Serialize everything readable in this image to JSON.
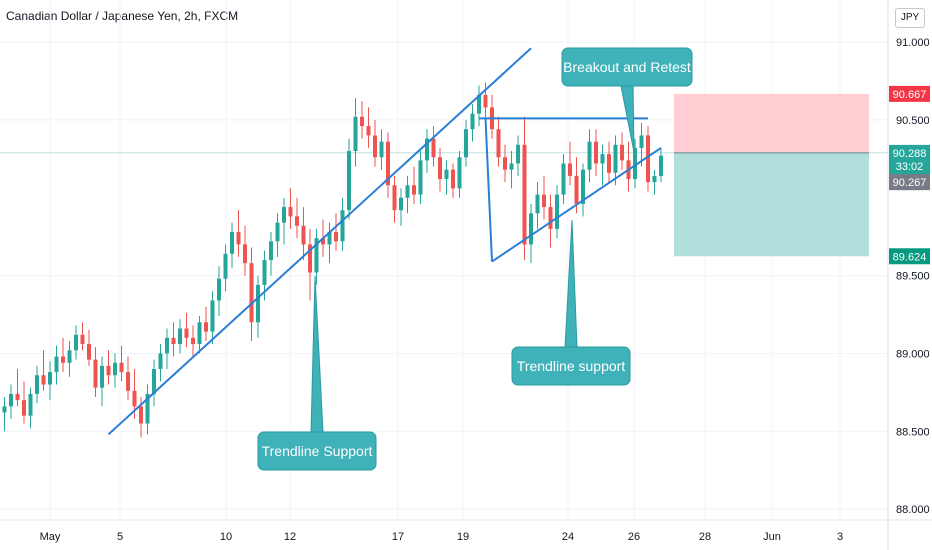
{
  "header": {
    "title": "Canadian Dollar / Japanese Yen, 2h, FXCM"
  },
  "currency_button": "JPY",
  "colors": {
    "up": "#26a69a",
    "down": "#ef5350",
    "line": "#2a7fd4",
    "callout": "#3eb1b9",
    "profit": "#b2dfdb",
    "loss": "#ffcdd2",
    "stop_tag": "#f23645",
    "target_tag": "#089981",
    "price_tag": "#26a69a",
    "gray_tag": "#787b86"
  },
  "chart_data": {
    "type": "candlestick",
    "ylim": [
      87.93,
      91.27
    ],
    "y_ticks": [
      "91.000",
      "90.500",
      "89.500",
      "89.000",
      "88.500",
      "88.000"
    ],
    "x_ticks": [
      "May",
      "5",
      "10",
      "12",
      "17",
      "19",
      "24",
      "26",
      "28",
      "Jun",
      "3"
    ],
    "ohlc": [
      [
        1,
        88.62,
        88.72,
        88.5,
        88.66
      ],
      [
        2,
        88.66,
        88.8,
        88.58,
        88.74
      ],
      [
        3,
        88.74,
        88.9,
        88.66,
        88.7
      ],
      [
        4,
        88.7,
        88.82,
        88.55,
        88.6
      ],
      [
        5,
        88.6,
        88.78,
        88.52,
        88.74
      ],
      [
        6,
        88.74,
        88.92,
        88.68,
        88.86
      ],
      [
        7,
        88.86,
        89.02,
        88.76,
        88.8
      ],
      [
        8,
        88.8,
        88.95,
        88.7,
        88.88
      ],
      [
        9,
        88.88,
        89.05,
        88.8,
        88.98
      ],
      [
        10,
        88.98,
        89.1,
        88.88,
        88.94
      ],
      [
        11,
        88.94,
        89.08,
        88.85,
        89.02
      ],
      [
        12,
        89.02,
        89.18,
        88.96,
        89.12
      ],
      [
        13,
        89.12,
        89.2,
        89.02,
        89.06
      ],
      [
        14,
        89.06,
        89.15,
        88.92,
        88.96
      ],
      [
        15,
        88.96,
        89.04,
        88.72,
        88.78
      ],
      [
        16,
        88.78,
        88.98,
        88.66,
        88.92
      ],
      [
        17,
        88.92,
        89.02,
        88.8,
        88.86
      ],
      [
        18,
        88.86,
        89.0,
        88.78,
        88.94
      ],
      [
        19,
        88.94,
        89.05,
        88.82,
        88.88
      ],
      [
        20,
        88.88,
        88.98,
        88.7,
        88.76
      ],
      [
        21,
        88.76,
        88.9,
        88.58,
        88.66
      ],
      [
        22,
        88.66,
        88.72,
        88.46,
        88.55
      ],
      [
        23,
        88.55,
        88.8,
        88.48,
        88.74
      ],
      [
        24,
        88.74,
        88.96,
        88.66,
        88.9
      ],
      [
        25,
        88.9,
        89.06,
        88.82,
        89.0
      ],
      [
        26,
        89.0,
        89.16,
        88.9,
        89.1
      ],
      [
        27,
        89.1,
        89.2,
        88.98,
        89.06
      ],
      [
        28,
        89.06,
        89.22,
        89.0,
        89.16
      ],
      [
        29,
        89.16,
        89.26,
        89.04,
        89.1
      ],
      [
        30,
        89.1,
        89.18,
        88.98,
        89.06
      ],
      [
        31,
        89.06,
        89.24,
        89.0,
        89.2
      ],
      [
        32,
        89.2,
        89.3,
        89.08,
        89.14
      ],
      [
        33,
        89.14,
        89.4,
        89.06,
        89.34
      ],
      [
        34,
        89.34,
        89.56,
        89.24,
        89.48
      ],
      [
        35,
        89.48,
        89.7,
        89.4,
        89.64
      ],
      [
        36,
        89.64,
        89.84,
        89.55,
        89.78
      ],
      [
        37,
        89.78,
        89.92,
        89.62,
        89.7
      ],
      [
        38,
        89.7,
        89.82,
        89.5,
        89.58
      ],
      [
        39,
        89.58,
        89.68,
        89.08,
        89.2
      ],
      [
        40,
        89.2,
        89.5,
        89.1,
        89.44
      ],
      [
        41,
        89.44,
        89.66,
        89.34,
        89.6
      ],
      [
        42,
        89.6,
        89.78,
        89.5,
        89.72
      ],
      [
        43,
        89.72,
        89.9,
        89.62,
        89.84
      ],
      [
        44,
        89.84,
        90.0,
        89.7,
        89.94
      ],
      [
        45,
        89.94,
        90.06,
        89.8,
        89.88
      ],
      [
        46,
        89.88,
        90.0,
        89.74,
        89.82
      ],
      [
        47,
        89.82,
        89.94,
        89.6,
        89.7
      ],
      [
        48,
        89.7,
        89.8,
        89.34,
        89.52
      ],
      [
        49,
        89.52,
        89.8,
        89.44,
        89.74
      ],
      [
        50,
        89.74,
        89.86,
        89.62,
        89.7
      ],
      [
        51,
        89.7,
        89.84,
        89.58,
        89.78
      ],
      [
        52,
        89.78,
        89.9,
        89.66,
        89.72
      ],
      [
        53,
        89.72,
        90.0,
        89.66,
        89.92
      ],
      [
        54,
        89.92,
        90.38,
        89.86,
        90.3
      ],
      [
        55,
        90.3,
        90.64,
        90.2,
        90.52
      ],
      [
        56,
        90.52,
        90.62,
        90.38,
        90.46
      ],
      [
        57,
        90.46,
        90.58,
        90.32,
        90.4
      ],
      [
        58,
        90.4,
        90.5,
        90.2,
        90.26
      ],
      [
        59,
        90.26,
        90.44,
        90.18,
        90.36
      ],
      [
        60,
        90.36,
        90.42,
        90.0,
        90.08
      ],
      [
        61,
        90.08,
        90.14,
        89.84,
        89.92
      ],
      [
        62,
        89.92,
        90.06,
        89.82,
        90.0
      ],
      [
        63,
        90.0,
        90.14,
        89.9,
        90.08
      ],
      [
        64,
        90.08,
        90.2,
        89.96,
        90.02
      ],
      [
        65,
        90.02,
        90.3,
        89.96,
        90.24
      ],
      [
        66,
        90.24,
        90.44,
        90.16,
        90.38
      ],
      [
        67,
        90.38,
        90.46,
        90.2,
        90.26
      ],
      [
        68,
        90.26,
        90.32,
        90.04,
        90.12
      ],
      [
        69,
        90.12,
        90.24,
        90.02,
        90.18
      ],
      [
        70,
        90.18,
        90.22,
        90.0,
        90.06
      ],
      [
        71,
        90.06,
        90.3,
        90.0,
        90.26
      ],
      [
        72,
        90.26,
        90.5,
        90.2,
        90.44
      ],
      [
        73,
        90.44,
        90.6,
        90.36,
        90.54
      ],
      [
        74,
        90.54,
        90.72,
        90.46,
        90.66
      ],
      [
        75,
        90.66,
        90.74,
        90.5,
        90.58
      ],
      [
        76,
        90.58,
        90.66,
        90.38,
        90.44
      ],
      [
        77,
        90.44,
        90.52,
        90.2,
        90.26
      ],
      [
        78,
        90.26,
        90.34,
        90.1,
        90.18
      ],
      [
        79,
        90.18,
        90.3,
        90.06,
        90.22
      ],
      [
        80,
        90.22,
        90.4,
        90.14,
        90.34
      ],
      [
        81,
        90.34,
        90.52,
        89.6,
        89.7
      ],
      [
        82,
        89.7,
        89.96,
        89.58,
        89.9
      ],
      [
        83,
        89.9,
        90.1,
        89.8,
        90.02
      ],
      [
        84,
        90.02,
        90.14,
        89.86,
        89.94
      ],
      [
        85,
        89.94,
        90.02,
        89.68,
        89.8
      ],
      [
        86,
        89.8,
        90.08,
        89.74,
        90.02
      ],
      [
        87,
        90.02,
        90.28,
        89.96,
        90.22
      ],
      [
        88,
        90.22,
        90.36,
        90.08,
        90.14
      ],
      [
        89,
        90.14,
        90.26,
        89.9,
        89.96
      ],
      [
        90,
        89.96,
        90.22,
        89.88,
        90.18
      ],
      [
        91,
        90.18,
        90.44,
        90.1,
        90.36
      ],
      [
        92,
        90.36,
        90.44,
        90.14,
        90.22
      ],
      [
        93,
        90.22,
        90.34,
        90.08,
        90.28
      ],
      [
        94,
        90.28,
        90.36,
        90.1,
        90.16
      ],
      [
        95,
        90.16,
        90.4,
        90.08,
        90.34
      ],
      [
        96,
        90.34,
        90.42,
        90.18,
        90.24
      ],
      [
        97,
        90.24,
        90.36,
        90.04,
        90.12
      ],
      [
        98,
        90.12,
        90.38,
        90.06,
        90.32
      ],
      [
        99,
        90.32,
        90.48,
        90.2,
        90.4
      ],
      [
        100,
        90.4,
        90.46,
        90.04,
        90.1
      ],
      [
        101,
        90.1,
        90.18,
        90.02,
        90.14
      ],
      [
        102,
        90.14,
        90.32,
        90.1,
        90.27
      ]
    ]
  },
  "overlays": {
    "position_box": {
      "entry": 90.288,
      "stop": 90.667,
      "target": 89.624,
      "from_bar": 104,
      "to_bar": 134
    },
    "price_tags": {
      "stop": "90.667",
      "current": "90.288",
      "countdown": "33:02",
      "previous": "90.267",
      "target": "89.624"
    },
    "callouts": {
      "breakout": "Breakout and Retest",
      "trend_support_1": "Trendline Support",
      "trend_support_2": "Trendline support"
    }
  }
}
